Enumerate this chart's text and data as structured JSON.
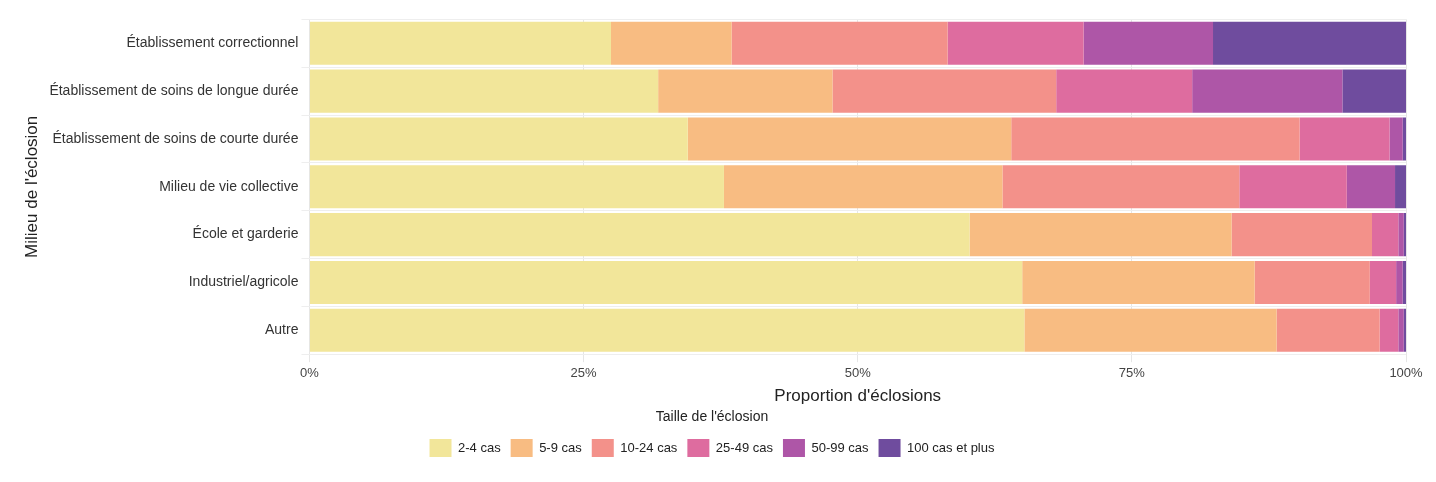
{
  "chart_data": {
    "type": "bar",
    "orientation": "horizontal",
    "stacked": true,
    "categories": [
      "Établissement correctionnel",
      "Établissement de soins de longue durée",
      "Établissement de soins de courte durée",
      "Milieu de vie collective",
      "École et garderie",
      "Industriel/agricole",
      "Autre"
    ],
    "series": [
      {
        "name": "2-4 cas",
        "color": "#f2e69a",
        "values": [
          27.5,
          31.8,
          34.5,
          37.8,
          60.2,
          65.0,
          65.2
        ]
      },
      {
        "name": "5-9 cas",
        "color": "#f8bc82",
        "values": [
          11.0,
          15.9,
          29.5,
          25.4,
          23.9,
          21.2,
          23.0
        ]
      },
      {
        "name": "10-24 cas",
        "color": "#f3918a",
        "values": [
          19.7,
          20.4,
          26.3,
          21.6,
          12.8,
          10.5,
          9.4
        ]
      },
      {
        "name": "25-49 cas",
        "color": "#de6c9f",
        "values": [
          12.4,
          12.4,
          8.2,
          9.8,
          2.4,
          2.4,
          1.7
        ]
      },
      {
        "name": "50-99 cas",
        "color": "#ae56a7",
        "values": [
          11.8,
          13.7,
          1.2,
          4.4,
          0.5,
          0.6,
          0.5
        ]
      },
      {
        "name": "100 cas et plus",
        "color": "#6f4c9e",
        "values": [
          17.6,
          5.8,
          0.3,
          1.0,
          0.2,
          0.3,
          0.2
        ]
      }
    ],
    "xlim": [
      0,
      100
    ],
    "xticks": [
      {
        "value": 0,
        "label": "0%"
      },
      {
        "value": 25,
        "label": "25%"
      },
      {
        "value": 50,
        "label": "50%"
      },
      {
        "value": 75,
        "label": "75%"
      },
      {
        "value": 100,
        "label": "100%"
      }
    ],
    "xlabel": "Proportion d'éclosions",
    "ylabel": "Milieu de l'éclosion",
    "legend_title": "Taille de l'éclosion",
    "legend": "bottom",
    "grid": true
  }
}
